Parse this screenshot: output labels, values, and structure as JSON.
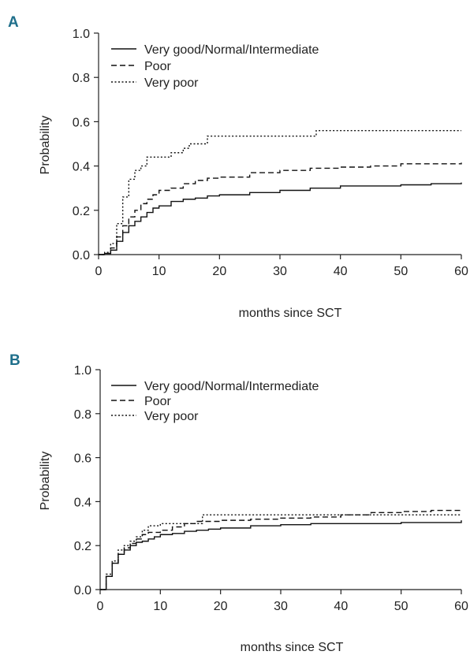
{
  "chart_data": [
    {
      "panel": "A",
      "type": "line",
      "step": true,
      "xlabel": "months since SCT",
      "ylabel": "Probability",
      "xlim": [
        0,
        60
      ],
      "ylim": [
        0,
        1
      ],
      "xticks": [
        "0",
        "10",
        "20",
        "30",
        "40",
        "50",
        "60"
      ],
      "yticks": [
        "0.0",
        "0.2",
        "0.4",
        "0.6",
        "0.8",
        "1.0"
      ],
      "legend_position": "top-left",
      "series": [
        {
          "name": "Very good/Normal/Intermediate",
          "dash": "solid",
          "x": [
            0,
            1,
            2,
            3,
            4,
            5,
            6,
            7,
            8,
            9,
            10,
            12,
            14,
            16,
            18,
            20,
            25,
            30,
            35,
            40,
            45,
            50,
            55,
            60
          ],
          "y": [
            0,
            0.005,
            0.02,
            0.06,
            0.1,
            0.13,
            0.15,
            0.17,
            0.19,
            0.21,
            0.22,
            0.24,
            0.25,
            0.255,
            0.265,
            0.27,
            0.28,
            0.29,
            0.3,
            0.31,
            0.31,
            0.315,
            0.32,
            0.325
          ]
        },
        {
          "name": "Poor",
          "dash": "dashed",
          "x": [
            0,
            1,
            2,
            3,
            4,
            5,
            6,
            7,
            8,
            9,
            10,
            12,
            14,
            16,
            18,
            20,
            25,
            30,
            35,
            40,
            45,
            50,
            55,
            60
          ],
          "y": [
            0,
            0.005,
            0.03,
            0.08,
            0.13,
            0.17,
            0.2,
            0.23,
            0.25,
            0.27,
            0.29,
            0.3,
            0.32,
            0.335,
            0.345,
            0.35,
            0.37,
            0.38,
            0.39,
            0.395,
            0.4,
            0.41,
            0.41,
            0.415
          ]
        },
        {
          "name": "Very poor",
          "dash": "dotted",
          "x": [
            0,
            1,
            2,
            3,
            4,
            5,
            6,
            7,
            8,
            10,
            12,
            14,
            15,
            17,
            18,
            25,
            30,
            35,
            36,
            45,
            60
          ],
          "y": [
            0,
            0.01,
            0.05,
            0.14,
            0.26,
            0.34,
            0.38,
            0.4,
            0.44,
            0.44,
            0.46,
            0.48,
            0.5,
            0.5,
            0.535,
            0.535,
            0.535,
            0.535,
            0.56,
            0.56,
            0.56
          ]
        }
      ]
    },
    {
      "panel": "B",
      "type": "line",
      "step": true,
      "xlabel": "months since SCT",
      "ylabel": "Probability",
      "xlim": [
        0,
        60
      ],
      "ylim": [
        0,
        1
      ],
      "xticks": [
        "0",
        "10",
        "20",
        "30",
        "40",
        "50",
        "60"
      ],
      "yticks": [
        "0.0",
        "0.2",
        "0.4",
        "0.6",
        "0.8",
        "1.0"
      ],
      "legend_position": "top-left",
      "series": [
        {
          "name": "Very good/Normal/Intermediate",
          "dash": "solid",
          "x": [
            0,
            1,
            2,
            3,
            4,
            5,
            6,
            7,
            8,
            9,
            10,
            12,
            14,
            16,
            18,
            20,
            25,
            30,
            35,
            40,
            45,
            50,
            55,
            60
          ],
          "y": [
            0,
            0.06,
            0.12,
            0.16,
            0.18,
            0.2,
            0.215,
            0.22,
            0.23,
            0.24,
            0.25,
            0.255,
            0.265,
            0.27,
            0.275,
            0.28,
            0.29,
            0.295,
            0.3,
            0.3,
            0.3,
            0.305,
            0.305,
            0.315
          ]
        },
        {
          "name": "Poor",
          "dash": "dashed",
          "x": [
            0,
            1,
            2,
            3,
            4,
            5,
            6,
            7,
            8,
            10,
            12,
            14,
            16,
            20,
            25,
            30,
            35,
            40,
            45,
            50,
            55,
            60
          ],
          "y": [
            0,
            0.06,
            0.12,
            0.16,
            0.19,
            0.21,
            0.23,
            0.25,
            0.26,
            0.27,
            0.285,
            0.3,
            0.31,
            0.315,
            0.32,
            0.325,
            0.33,
            0.34,
            0.35,
            0.355,
            0.36,
            0.36
          ]
        },
        {
          "name": "Very poor",
          "dash": "dotted",
          "x": [
            0,
            1,
            2,
            3,
            4,
            5,
            6,
            7,
            8,
            10,
            12,
            15,
            17,
            20,
            30,
            40,
            60
          ],
          "y": [
            0,
            0.07,
            0.13,
            0.18,
            0.2,
            0.22,
            0.24,
            0.27,
            0.29,
            0.3,
            0.3,
            0.3,
            0.34,
            0.34,
            0.34,
            0.34,
            0.34
          ]
        }
      ]
    }
  ]
}
